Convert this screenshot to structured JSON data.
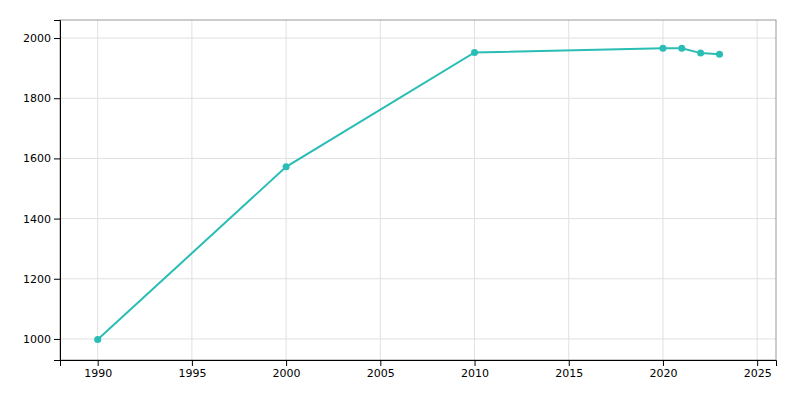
{
  "chart_data": {
    "type": "line",
    "x": [
      1990,
      2000,
      2010,
      2020,
      2021,
      2022,
      2023
    ],
    "values": [
      998,
      1572,
      1952,
      1966,
      1966,
      1950,
      1946
    ],
    "color": "#2abdb5",
    "marker": "circle",
    "xlim": [
      1988,
      2026
    ],
    "ylim": [
      930,
      2060
    ],
    "xticks": [
      1990,
      1995,
      2000,
      2005,
      2010,
      2015,
      2020,
      2025
    ],
    "yticks": [
      1000,
      1200,
      1400,
      1600,
      1800,
      2000
    ],
    "grid": true
  }
}
